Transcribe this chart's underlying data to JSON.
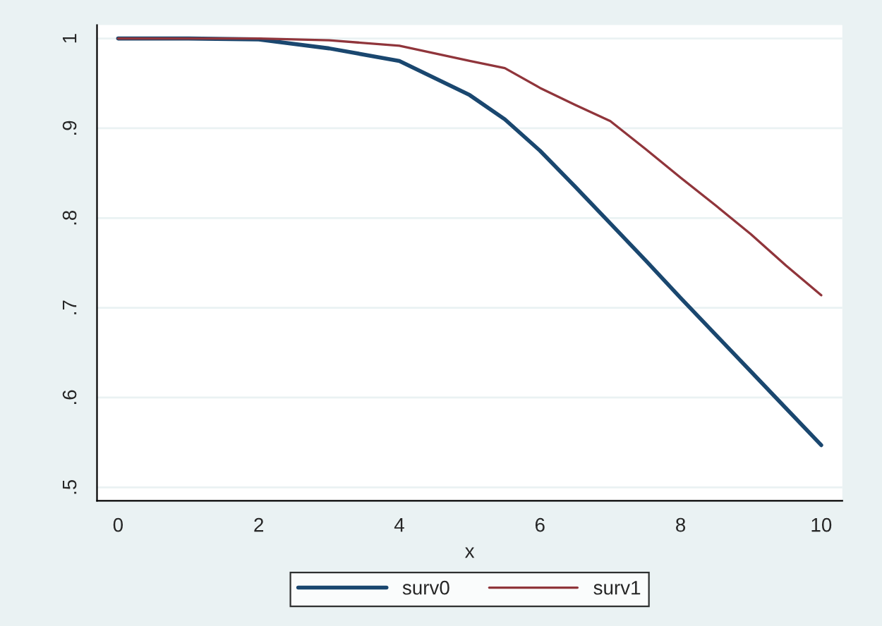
{
  "chart_data": {
    "type": "line",
    "xlabel": "x",
    "x": [
      0,
      1,
      2,
      3,
      4,
      5,
      5.5,
      6,
      6.5,
      7,
      7.5,
      8,
      8.5,
      9,
      9.5,
      10
    ],
    "series": [
      {
        "name": "surv0",
        "color": "#1a476f",
        "values": [
          1.0,
          1.0,
          0.999,
          0.989,
          0.975,
          0.937,
          0.91,
          0.875,
          0.835,
          0.794,
          0.753,
          0.711,
          0.67,
          0.629,
          0.588,
          0.547
        ]
      },
      {
        "name": "surv1",
        "color": "#90353b",
        "values": [
          1.0,
          1.0,
          1.0,
          0.998,
          0.992,
          0.975,
          0.967,
          0.945,
          0.926,
          0.908,
          0.877,
          0.845,
          0.814,
          0.782,
          0.747,
          0.714
        ]
      }
    ],
    "xlim": [
      -0.3,
      10.3
    ],
    "ylim": [
      0.485,
      1.015
    ],
    "xticks": [
      0,
      2,
      4,
      6,
      8,
      10
    ],
    "yticks": [
      {
        "value": 0.5,
        "label": ".5"
      },
      {
        "value": 0.6,
        "label": ".6"
      },
      {
        "value": 0.7,
        "label": ".7"
      },
      {
        "value": 0.8,
        "label": ".8"
      },
      {
        "value": 0.9,
        "label": ".9"
      },
      1
    ],
    "grid": "y",
    "legend": "bottom",
    "marker": "none",
    "line_style": "solid"
  }
}
